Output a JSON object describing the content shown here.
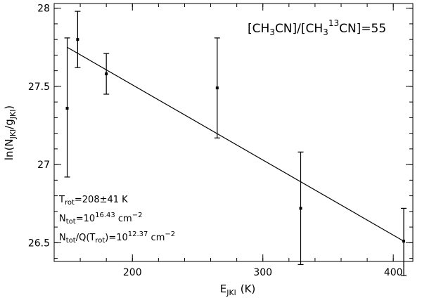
{
  "chart_data": {
    "type": "scatter",
    "xlabel": {
      "main": "E",
      "sub": "JKl",
      "unit": "(K)"
    },
    "ylabel": {
      "pre": "ln(N",
      "sub1": "JKl",
      "mid": "/g",
      "sub2": "JKl",
      "post": ")"
    },
    "xlim": [
      140,
      415
    ],
    "ylim": [
      26.38,
      28.03
    ],
    "x_ticks": [
      {
        "value": 200,
        "label": "200"
      },
      {
        "value": 300,
        "label": "300"
      },
      {
        "value": 400,
        "label": "400"
      }
    ],
    "y_ticks": [
      {
        "value": 26.5,
        "label": "26.5"
      },
      {
        "value": 27,
        "label": "27"
      },
      {
        "value": 27.5,
        "label": "27.5"
      },
      {
        "value": 28,
        "label": "28"
      }
    ],
    "x_minor_step": 20,
    "y_minor_step": 0.1,
    "points": [
      {
        "x": 150,
        "y": 27.36,
        "err_low": 26.92,
        "err_high": 27.81
      },
      {
        "x": 158,
        "y": 27.8,
        "err_low": 27.62,
        "err_high": 27.98
      },
      {
        "x": 180,
        "y": 27.58,
        "err_low": 27.45,
        "err_high": 27.71
      },
      {
        "x": 265,
        "y": 27.49,
        "err_low": 27.17,
        "err_high": 27.81
      },
      {
        "x": 329,
        "y": 26.72,
        "err_low": 26.36,
        "err_high": 27.08
      },
      {
        "x": 408,
        "y": 26.51,
        "err_low": 26.29,
        "err_high": 26.72
      }
    ],
    "fit_line": {
      "x": [
        150,
        408
      ],
      "y": [
        27.75,
        26.51
      ]
    },
    "annotations": {
      "ratio": {
        "a": "[CH",
        "a_sub": "3",
        "b": "CN]/[CH",
        "b_sub": "3",
        "c_sup": "13",
        "d": "CN]=55"
      },
      "trot": {
        "main": "T",
        "sub": "rot",
        "value": "=208±41 K"
      },
      "ntot": {
        "main": "N",
        "sub": "tot",
        "eq": "=10",
        "exp": "16.43",
        "unit": " cm",
        "unit_exp": "−2"
      },
      "nq": {
        "main": "N",
        "sub": "tot",
        "mid": "/Q(T",
        "sub2": "rot",
        "eq": ")=10",
        "exp": "12.37",
        "unit": " cm",
        "unit_exp": "−2"
      }
    }
  }
}
